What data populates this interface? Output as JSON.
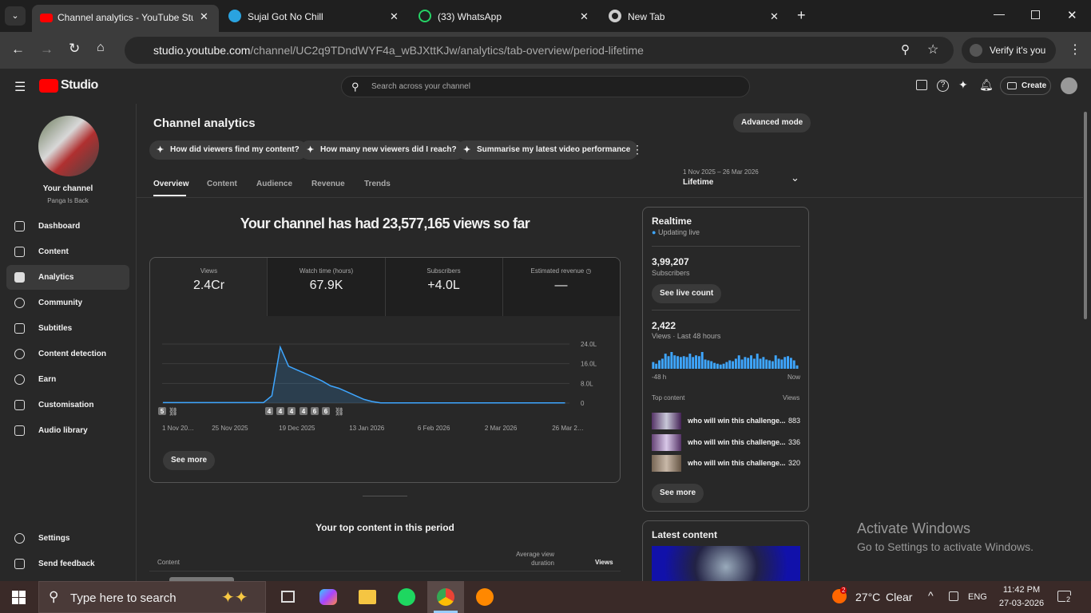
{
  "browser": {
    "tabs": [
      "Channel analytics - YouTube Stu",
      "Sujal Got No Chill",
      "(33) WhatsApp",
      "New Tab"
    ],
    "url_host": "studio.youtube.com",
    "url_path": "/channel/UC2q9TDndWYF4a_wBJXttKJw/analytics/tab-overview/period-lifetime",
    "profile": "Verify it's you"
  },
  "header": {
    "logo": "Studio",
    "search": "Search across your channel",
    "create": "Create"
  },
  "sidebar": {
    "channel": "Your channel",
    "handle": "Panga Is Back",
    "nav": [
      "Dashboard",
      "Content",
      "Analytics",
      "Community",
      "Subtitles",
      "Content detection",
      "Earn",
      "Customisation",
      "Audio library"
    ],
    "bottom": [
      "Settings",
      "Send feedback"
    ]
  },
  "main": {
    "title": "Channel analytics",
    "advanced": "Advanced mode",
    "chips": [
      "How did viewers find my content?",
      "How many new viewers did I reach?",
      "Summarise my latest video performance"
    ],
    "tabs": [
      "Overview",
      "Content",
      "Audience",
      "Revenue",
      "Trends"
    ],
    "period_range": "1 Nov 2025 – 26 Mar 2026",
    "period": "Lifetime",
    "headline": "Your channel has had 23,577,165 views so far",
    "metrics": [
      {
        "label": "Views",
        "value": "2.4Cr"
      },
      {
        "label": "Watch time (hours)",
        "value": "67.9K"
      },
      {
        "label": "Subscribers",
        "value": "+4.0L"
      },
      {
        "label": "Estimated revenue",
        "value": "—"
      }
    ],
    "see_more": "See more",
    "top_title": "Your top content in this period",
    "top_headers": [
      "Content",
      "Average view duration",
      "Views"
    ]
  },
  "chart_data": {
    "type": "line",
    "series": [
      {
        "name": "Views",
        "color": "#3ea6ff",
        "values": [
          20000,
          20000,
          20000,
          20000,
          20000,
          20000,
          20000,
          20000,
          20000,
          20000,
          20000,
          20000,
          20000,
          300000,
          2270000,
          1500000,
          1350000,
          1200000,
          1050000,
          900000,
          700000,
          600000,
          450000,
          300000,
          150000,
          60000,
          10000,
          10000,
          10000,
          10000,
          10000,
          10000,
          10000,
          10000,
          10000,
          10000,
          10000,
          10000,
          10000,
          10000,
          10000,
          10000,
          10000,
          10000,
          10000,
          10000,
          10000,
          10000,
          10000
        ]
      }
    ],
    "x": [
      0,
      3,
      6,
      9,
      12,
      15,
      18,
      21,
      24,
      27,
      30,
      33,
      36,
      39,
      42,
      45,
      48,
      51,
      54,
      57,
      60,
      63,
      66,
      69,
      72,
      75,
      78,
      81,
      84,
      87,
      90,
      93,
      96,
      99,
      102,
      105,
      108,
      111,
      114,
      117,
      120,
      123,
      126,
      129,
      132,
      135,
      138,
      141,
      144
    ],
    "xlim": [
      0,
      145
    ],
    "xticks": [
      {
        "value": 0,
        "label": "1 Nov 20…"
      },
      {
        "value": 24,
        "label": "25 Nov 2025"
      },
      {
        "value": 48,
        "label": "19 Dec 2025"
      },
      {
        "value": 73,
        "label": "13 Jan 2026"
      },
      {
        "value": 97,
        "label": "6 Feb 2026"
      },
      {
        "value": 121,
        "label": "2 Mar 2026"
      },
      {
        "value": 145,
        "label": "26 Mar 2…"
      }
    ],
    "ylim": [
      0,
      2400000
    ],
    "yticks": [
      {
        "value": 0,
        "label": "0"
      },
      {
        "value": 800000,
        "label": "8.0L"
      },
      {
        "value": 1600000,
        "label": "16.0L"
      },
      {
        "value": 2400000,
        "label": "24.0L"
      }
    ],
    "grid": true,
    "markers": [
      "5",
      "4",
      "4",
      "4",
      "4",
      "6",
      "6"
    ]
  },
  "realtime": {
    "title": "Realtime",
    "status": "Updating live",
    "subs": "3,99,207",
    "subs_label": "Subscribers",
    "live": "See live count",
    "views": "2,422",
    "views_label": "Views · Last 48 hours",
    "bars": [
      32,
      24,
      40,
      48,
      72,
      60,
      80,
      64,
      60,
      56,
      60,
      56,
      72,
      56,
      64,
      60,
      80,
      44,
      40,
      36,
      28,
      24,
      20,
      24,
      32,
      40,
      36,
      48,
      64,
      44,
      56,
      52,
      64,
      48,
      72,
      48,
      56,
      44,
      40,
      36,
      64,
      48,
      44,
      56,
      60,
      52,
      40,
      16
    ],
    "start": "-48 h",
    "end": "Now",
    "top_label": "Top content",
    "views_col": "Views",
    "rows": [
      {
        "title": "who will win this challenge...",
        "views": "883"
      },
      {
        "title": "who will win this challenge...",
        "views": "336"
      },
      {
        "title": "who will win this challenge...",
        "views": "320"
      }
    ],
    "see_more": "See more",
    "latest": "Latest content"
  },
  "watermark": {
    "title": "Activate Windows",
    "text": "Go to Settings to activate Windows."
  },
  "taskbar": {
    "search": "Type here to search",
    "weather_badge": "2",
    "temp": "27°C",
    "weather": "Clear",
    "lang": "ENG",
    "time": "11:42 PM",
    "date": "27-03-2026",
    "notifications": "2"
  }
}
